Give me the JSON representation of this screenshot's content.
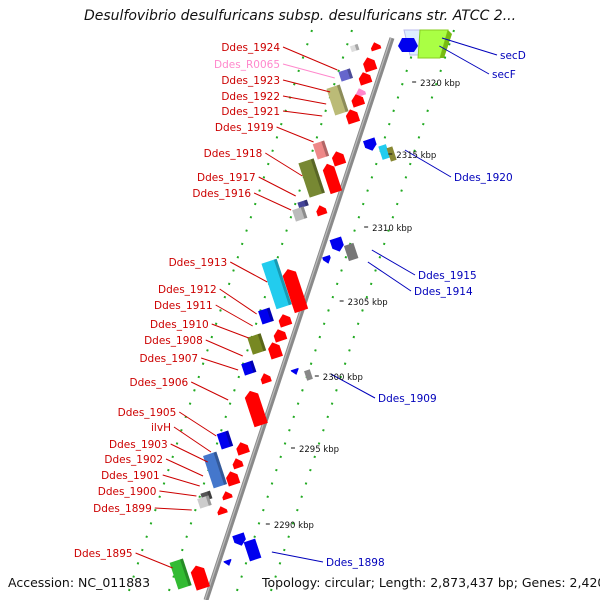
{
  "title": "Desulfovibrio desulfuricans subsp. desulfuricans str. ATCC 2...",
  "footer": {
    "accession": "Accession: NC_011883",
    "summary": "Topology: circular; Length: 2,873,437 bp; Genes: 2,420"
  },
  "colors": {
    "red_label": "#cc0000",
    "blue_label": "#0000bb",
    "pink_label": "#ff88cc",
    "backbone": "#888888",
    "tick": "#228822",
    "gene_red": "#ff0000",
    "gene_blue": "#0000ee"
  },
  "scale_labels": [
    "2320 kbp",
    "2315 kbp",
    "2310 kbp",
    "2305 kbp",
    "2300 kbp",
    "2295 kbp",
    "2290 kbp"
  ],
  "left_gene_labels": [
    "Ddes_1924",
    "Ddes_R0065",
    "Ddes_1923",
    "Ddes_1922",
    "Ddes_1921",
    "Ddes_1919",
    "Ddes_1918",
    "Ddes_1917",
    "Ddes_1916",
    "Ddes_1913",
    "Ddes_1912",
    "Ddes_1911",
    "Ddes_1910",
    "Ddes_1908",
    "Ddes_1907",
    "Ddes_1906",
    "Ddes_1905",
    "ilvH",
    "Ddes_1903",
    "Ddes_1902",
    "Ddes_1901",
    "Ddes_1900",
    "Ddes_1899",
    "Ddes_1895"
  ],
  "right_gene_labels": [
    "secD",
    "secF",
    "Ddes_1920",
    "Ddes_1915",
    "Ddes_1914",
    "Ddes_1909",
    "Ddes_1898"
  ]
}
